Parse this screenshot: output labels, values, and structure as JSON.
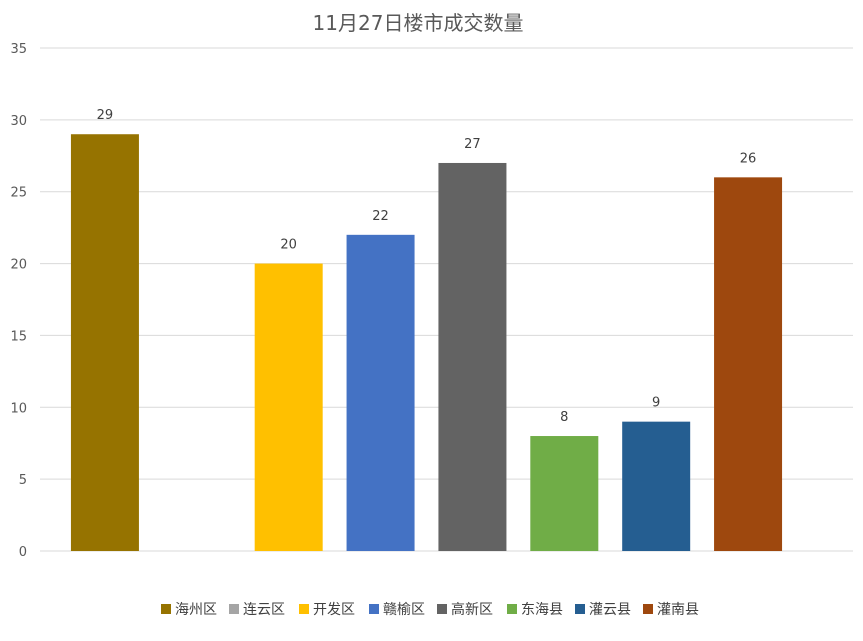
{
  "chart_data": {
    "type": "bar",
    "title": "11月27日楼市成交数量",
    "xlabel": "",
    "ylabel": "",
    "ylim": [
      0,
      35
    ],
    "yticks": [
      0,
      5,
      10,
      15,
      20,
      25,
      30,
      35
    ],
    "grid": true,
    "legend_position": "bottom",
    "categories": [
      "海州区",
      "连云区",
      "开发区",
      "赣榆区",
      "高新区",
      "东海县",
      "灌云县",
      "灌南县"
    ],
    "values": [
      29,
      0,
      20,
      22,
      27,
      8,
      9,
      26
    ],
    "data_labels": [
      "29",
      "",
      "20",
      "22",
      "27",
      "8",
      "9",
      "26"
    ],
    "colors": [
      "#967300",
      "#A5A5A5",
      "#FFC000",
      "#4472C4",
      "#636363",
      "#70AD47",
      "#255E91",
      "#9E480E"
    ]
  }
}
